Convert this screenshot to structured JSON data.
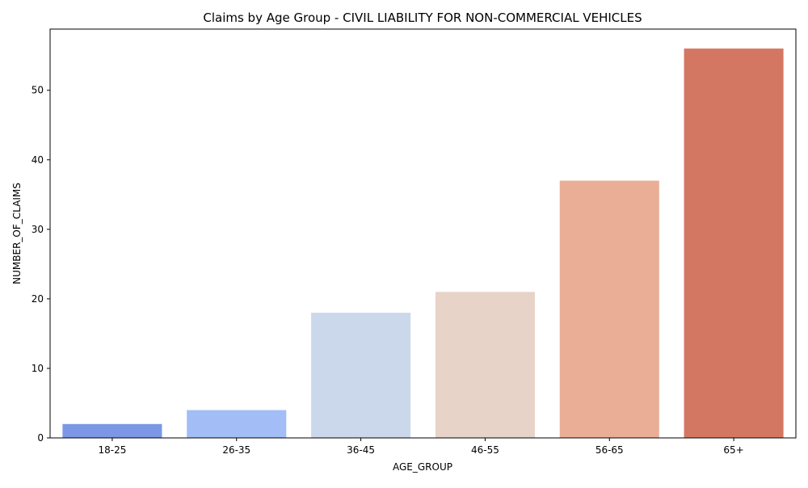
{
  "chart_data": {
    "type": "bar",
    "title": "Claims by Age Group - CIVIL LIABILITY FOR NON-COMMERCIAL VEHICLES",
    "xlabel": "AGE_GROUP",
    "ylabel": "NUMBER_OF_CLAIMS",
    "categories": [
      "18-25",
      "26-35",
      "36-45",
      "46-55",
      "56-65",
      "65+"
    ],
    "values": [
      2,
      4,
      18,
      21,
      37,
      56
    ],
    "colors": [
      "#7b97e6",
      "#a3bef6",
      "#cbd8ec",
      "#e8d3c9",
      "#eaae96",
      "#d37763"
    ],
    "ylim": [
      0,
      58.8
    ],
    "yticks": [
      0,
      10,
      20,
      30,
      40,
      50
    ],
    "grid": false,
    "legend": "none"
  }
}
